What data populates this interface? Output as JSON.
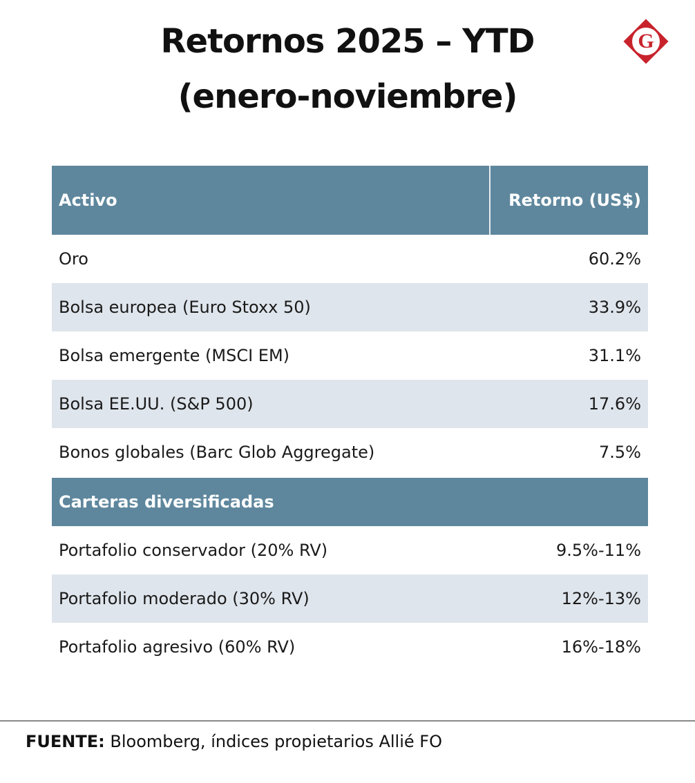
{
  "header": {
    "title": [
      "Retornos 2025 – YTD",
      "(enero-noviembre)"
    ],
    "logo": "G"
  },
  "table": {
    "columns": [
      "Activo",
      "Retorno (US$)"
    ],
    "rows": [
      [
        "Oro",
        "60.2%"
      ],
      [
        "Bolsa europea (Euro Stoxx 50)",
        "33.9%"
      ],
      [
        "Bolsa emergente (MSCI EM)",
        "31.1%"
      ],
      [
        "Bolsa EE.UU. (S&P 500)",
        "17.6%"
      ],
      [
        "Bonos globales (Barc Glob Aggregate)",
        "7.5%"
      ]
    ],
    "section": "Carteras diversificadas",
    "section_rows": [
      [
        "Portafolio conservador (20% RV)",
        "9.5%-11%"
      ],
      [
        "Portafolio moderado (30% RV)",
        "12%-13%"
      ],
      [
        "Portafolio agresivo (60% RV)",
        "16%-18%"
      ]
    ]
  },
  "footer": {
    "label": "FUENTE:",
    "text": "Bloomberg, índices propietarios Allié FO"
  }
}
